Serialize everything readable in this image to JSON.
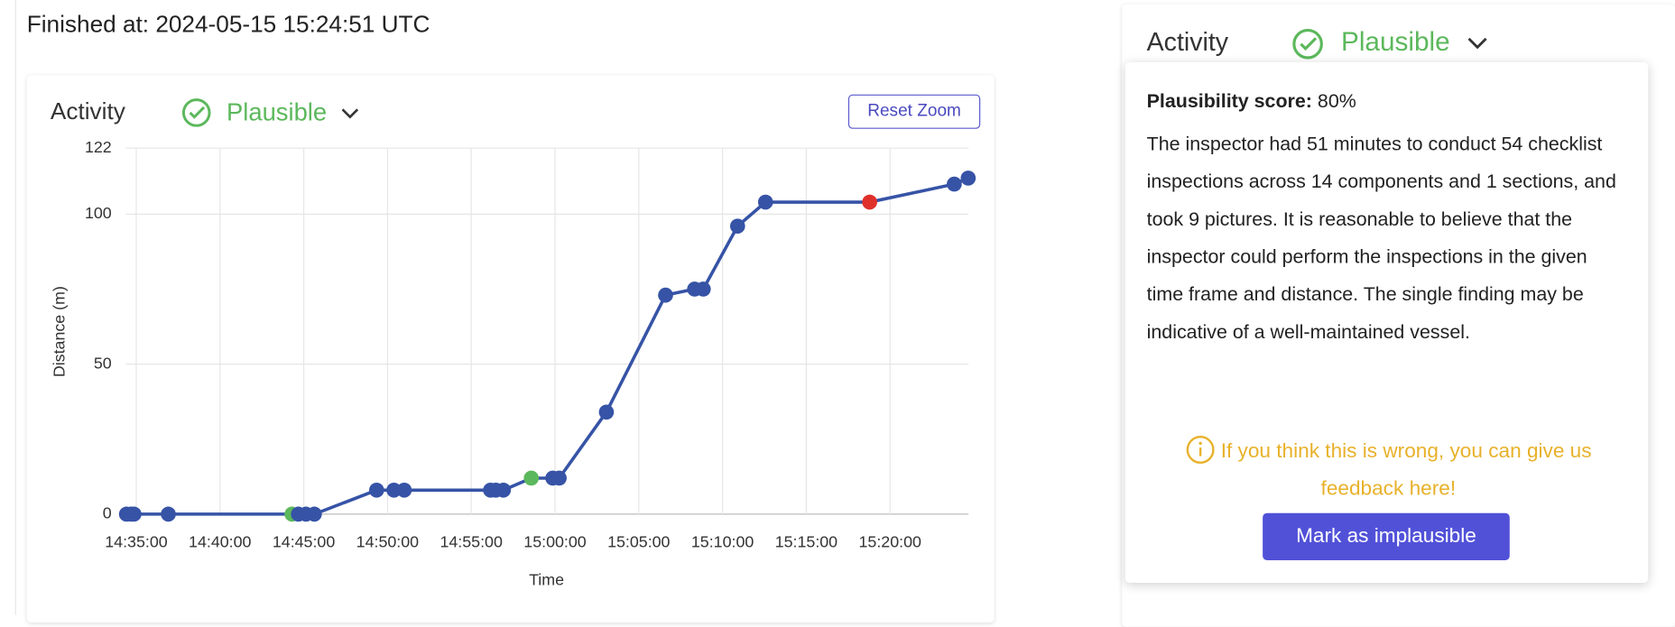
{
  "header": {
    "finished": "Finished at: 2024-05-15 15:24:51 UTC"
  },
  "chart_panel": {
    "title": "Activity",
    "status": "Plausible",
    "reset": "Reset Zoom"
  },
  "chart_data": {
    "type": "line",
    "x_label": "Time",
    "y_label": "Distance (m)",
    "xlim": [
      "14:34:22",
      "15:24:41"
    ],
    "xticks": [
      "14:35:00",
      "14:40:00",
      "14:45:00",
      "14:50:00",
      "14:55:00",
      "15:00:00",
      "15:05:00",
      "15:10:00",
      "15:15:00",
      "15:20:00"
    ],
    "ylim": [
      0,
      122
    ],
    "yticks": [
      0,
      50,
      100,
      122
    ],
    "grid": true,
    "series": [
      {
        "color": "#3653a6",
        "x": [
          "14:34:25",
          "14:34:41",
          "14:34:52",
          "14:36:55",
          "14:44:18",
          "14:44:41",
          "14:45:08",
          "14:45:38",
          "14:49:21",
          "14:50:23",
          "14:51:00",
          "14:56:09",
          "14:56:28",
          "14:56:55",
          "14:58:35",
          "14:59:52",
          "15:00:15",
          "15:03:04",
          "15:06:36",
          "15:08:20",
          "15:08:51",
          "15:10:54",
          "15:12:34",
          "15:18:47",
          "15:23:50",
          "15:24:40"
        ],
        "values": [
          0,
          0,
          0,
          0,
          0,
          0,
          0,
          0,
          8,
          8,
          8,
          8,
          8,
          8,
          12,
          12,
          12,
          34,
          73,
          75,
          75,
          96,
          104,
          104,
          110,
          112
        ],
        "point_colors": [
          "#3653a6",
          "#3653a6",
          "#3653a6",
          "#3653a6",
          "#5cb85c",
          "#3653a6",
          "#3653a6",
          "#3653a6",
          "#3653a6",
          "#3653a6",
          "#3653a6",
          "#3653a6",
          "#3653a6",
          "#3653a6",
          "#5cb85c",
          "#3653a6",
          "#3653a6",
          "#3653a6",
          "#3653a6",
          "#3653a6",
          "#3653a6",
          "#3653a6",
          "#3653a6",
          "#e0302a",
          "#3653a6",
          "#3653a6"
        ]
      }
    ]
  },
  "side_panel": {
    "title": "Activity",
    "status": "Plausible"
  },
  "popover": {
    "score_label": "Plausibility score:",
    "score": "80%",
    "text": "The inspector had 51 minutes to conduct 54 checklist inspections across 14 components and 1 sections, and took 9 pictures. It is reasonable to believe that the inspector could perform the inspections in the given time frame and distance. The single finding may be indicative of a well-maintained vessel.",
    "feedback": "If you think this is wrong, you can give us feedback here!",
    "button": "Mark as implausible"
  }
}
